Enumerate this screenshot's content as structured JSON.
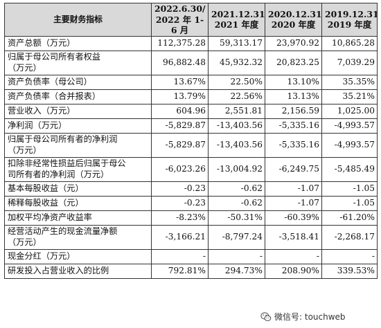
{
  "header": {
    "col0": "主要财务指标",
    "col1": "2022.6.30/\n2022 年 1-6 月",
    "col2": "2021.12.31/\n2021 年度",
    "col3": "2020.12.31/\n2020 年度",
    "col4": "2019.12.31/\n2019 年度"
  },
  "rows": [
    {
      "label": "资产总额（万元）",
      "v": [
        "112,375.28",
        "59,313.17",
        "23,970.92",
        "10,865.28"
      ]
    },
    {
      "label": "归属于母公司所有者权益\n（万元）",
      "v": [
        "96,882.48",
        "45,932.32",
        "20,823.25",
        "7,039.29"
      ]
    },
    {
      "label": "资产负债率（母公司）",
      "v": [
        "13.67%",
        "22.50%",
        "13.10%",
        "35.35%"
      ]
    },
    {
      "label": "资产负债率（合并报表）",
      "v": [
        "13.79%",
        "22.56%",
        "13.13%",
        "35.21%"
      ]
    },
    {
      "label": "营业收入（万元）",
      "v": [
        "604.96",
        "2,551.81",
        "2,156.59",
        "1,025.00"
      ]
    },
    {
      "label": "净利润（万元）",
      "v": [
        "-5,829.87",
        "-13,403.56",
        "-5,335.16",
        "-4,993.57"
      ]
    },
    {
      "label": "归属于母公司所有者的净利润\n（万元）",
      "v": [
        "-5,829.87",
        "-13,403.56",
        "-5,335.16",
        "-4,993.57"
      ]
    },
    {
      "label": "扣除非经常性损益后归属于母公\n司所有者的净利润（万元）",
      "v": [
        "-6,023.26",
        "-13,004.92",
        "-6,249.75",
        "-5,485.49"
      ]
    },
    {
      "label": "基本每股收益（元）",
      "v": [
        "-0.23",
        "-0.62",
        "-1.07",
        "-1.05"
      ]
    },
    {
      "label": "稀释每股收益（元）",
      "v": [
        "-0.23",
        "-0.62",
        "-1.07",
        "-1.05"
      ]
    },
    {
      "label": "加权平均净资产收益率",
      "v": [
        "-8.23%",
        "-50.31%",
        "-60.39%",
        "-61.20%"
      ]
    },
    {
      "label": "经营活动产生的现金流量净额\n（万元）",
      "v": [
        "-3,166.21",
        "-8,797.24",
        "-3,518.41",
        "-2,268.17"
      ]
    },
    {
      "label": "现金分红（万元）",
      "v": [
        "-",
        "-",
        "-",
        "-"
      ]
    },
    {
      "label": "研发投入占营业收入的比例",
      "v": [
        "792.81%",
        "294.73%",
        "208.90%",
        "339.53%"
      ]
    }
  ],
  "watermark": {
    "text": "微信号: touchweb",
    "icon": "wechat-icon"
  }
}
